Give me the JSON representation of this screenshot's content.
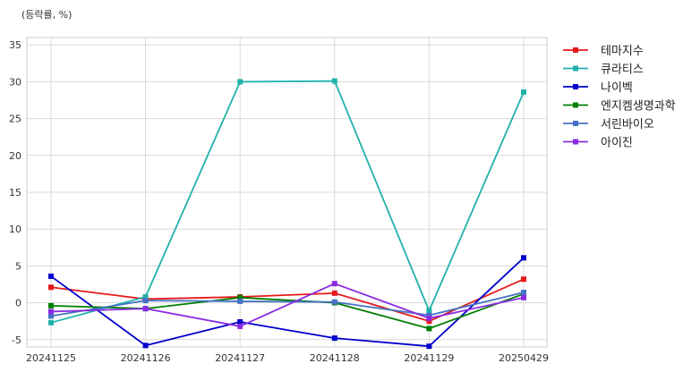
{
  "chart_data": {
    "type": "line",
    "unit_label": "(등락률, %)",
    "categories": [
      "20241125",
      "20241126",
      "20241127",
      "20241128",
      "20241129",
      "20250429"
    ],
    "ylim": [
      -6,
      36
    ],
    "yticks": [
      -5,
      0,
      5,
      10,
      15,
      20,
      25,
      30,
      35
    ],
    "grid": true,
    "legend_position": "right",
    "series": [
      {
        "name": "테마지수",
        "color": "#e41a1c",
        "values": [
          2.1,
          0.5,
          0.8,
          1.3,
          -2.5,
          3.2
        ]
      },
      {
        "name": "큐라티스",
        "color": "#20b2aa",
        "values": [
          -2.7,
          0.8,
          30.0,
          30.1,
          -1.1,
          28.6
        ]
      },
      {
        "name": "나이벡",
        "color": "#0000cd",
        "values": [
          3.6,
          -5.8,
          -2.6,
          -4.8,
          -5.9,
          6.1
        ]
      },
      {
        "name": "엔지켐생명과학",
        "color": "#008000",
        "values": [
          -0.4,
          -0.8,
          0.7,
          0.0,
          -3.5,
          1.2
        ]
      },
      {
        "name": "서린바이오",
        "color": "#4472c4",
        "values": [
          -1.8,
          0.3,
          0.2,
          0.1,
          -1.7,
          1.4
        ]
      },
      {
        "name": "아이진",
        "color": "#8a2be2",
        "values": [
          -1.2,
          -0.8,
          -3.2,
          2.6,
          -2.1,
          0.7
        ]
      }
    ]
  }
}
